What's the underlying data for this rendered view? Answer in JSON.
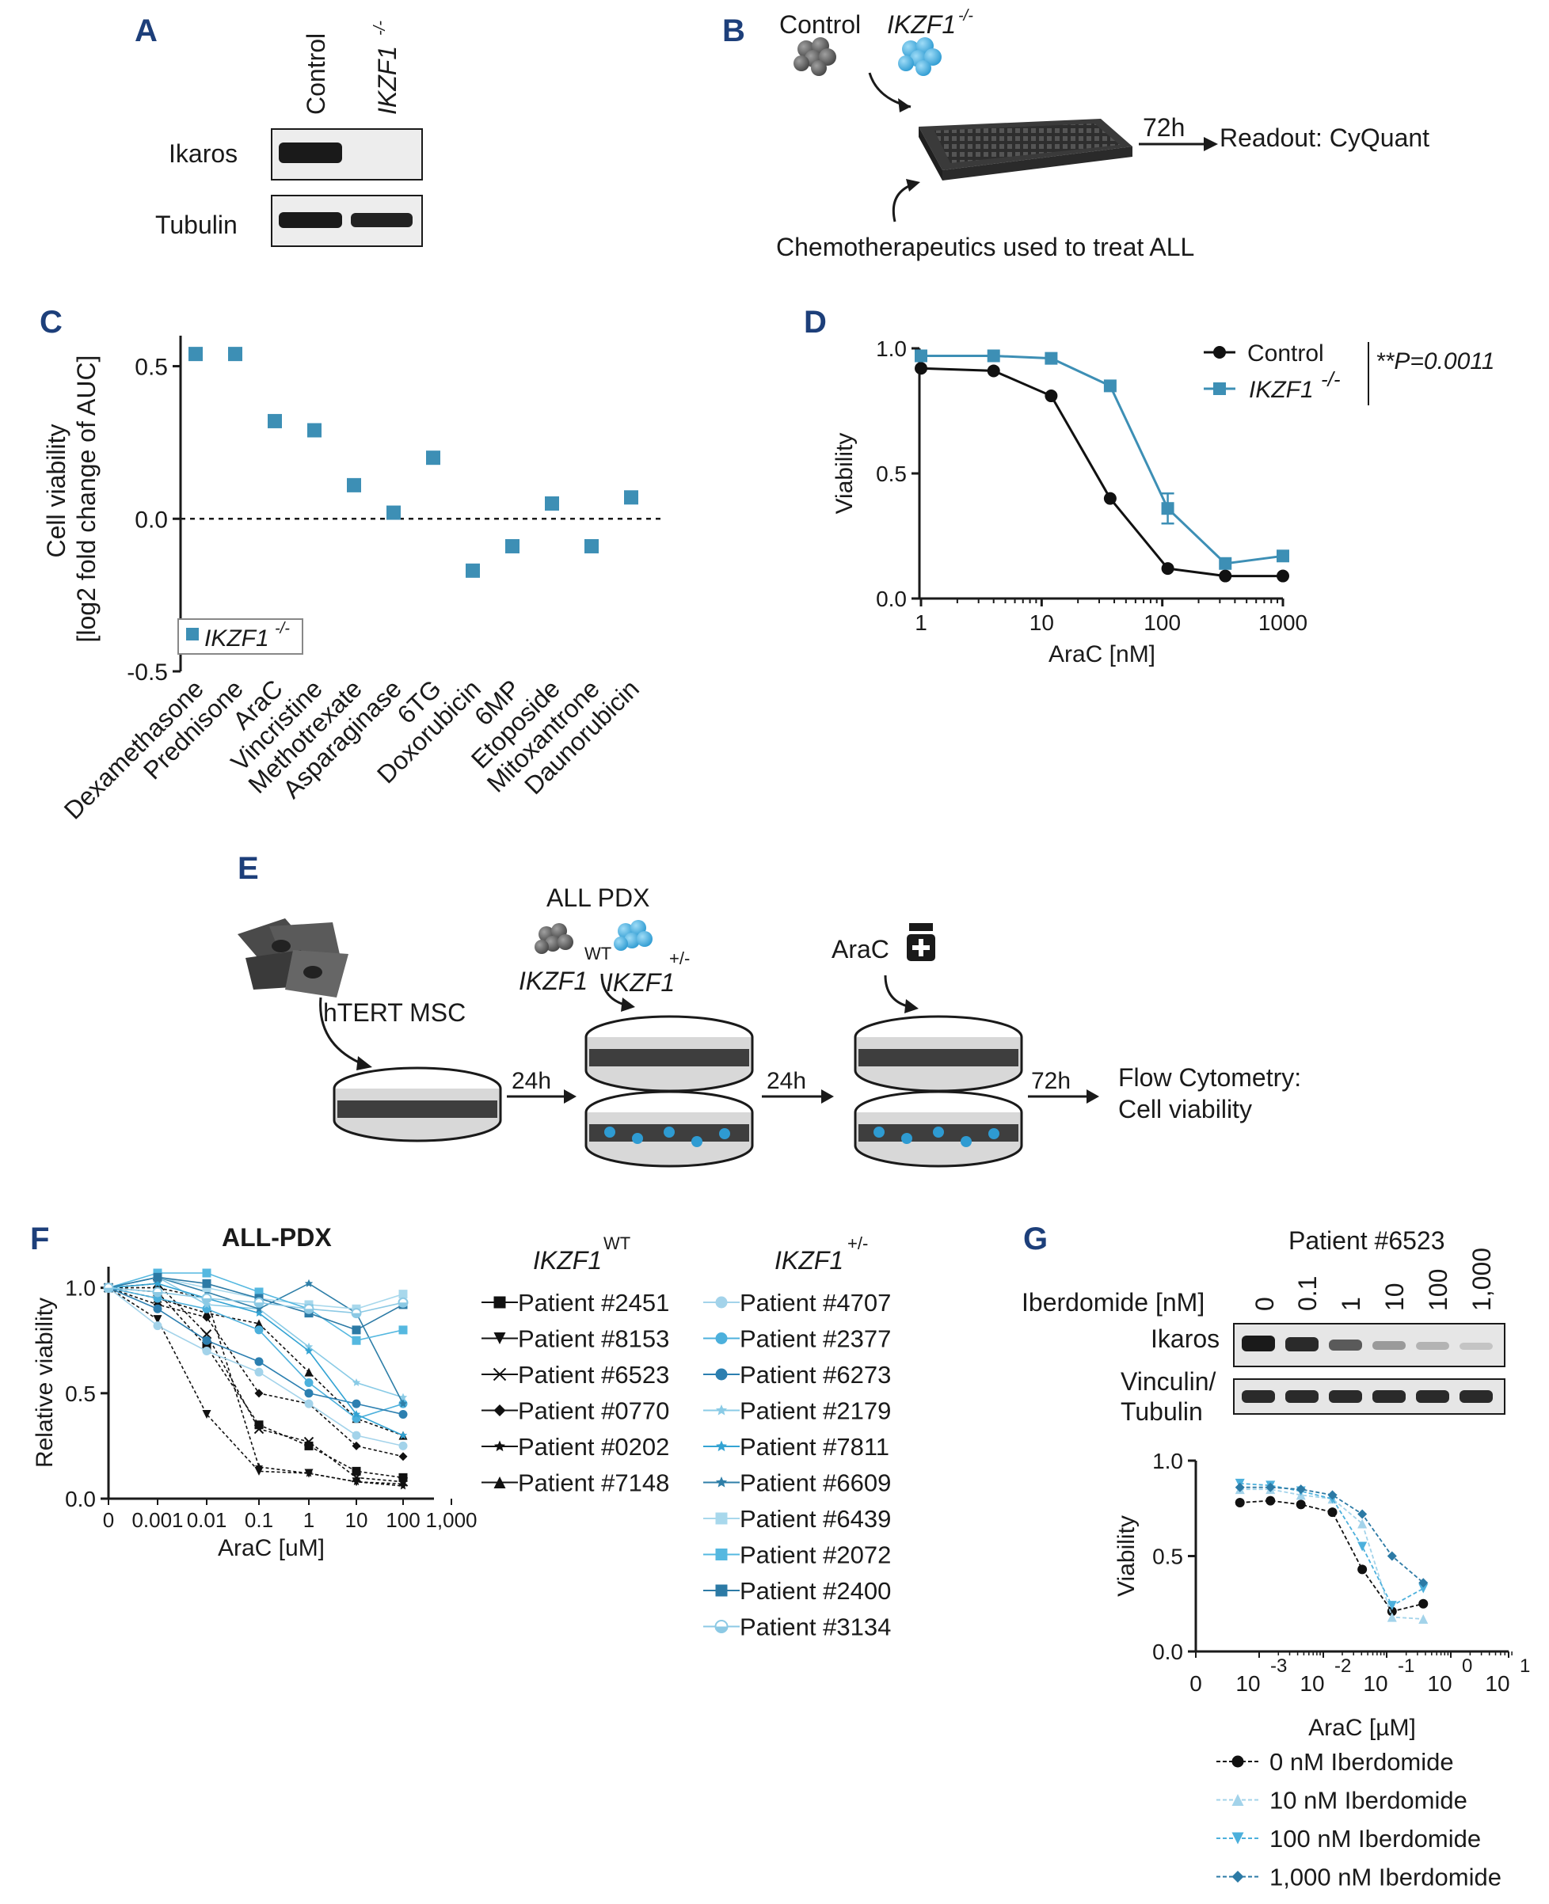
{
  "panels": {
    "A": {
      "label": "A",
      "lanes": [
        "Control",
        "IKZF1"
      ],
      "lane_sup": "-/-",
      "blots": [
        "Ikaros",
        "Tubulin"
      ]
    },
    "B": {
      "label": "B",
      "control": "Control",
      "ko": "IKZF1",
      "ko_sup": "-/-",
      "time": "72h",
      "readout": "Readout: CyQuant",
      "treat": "Chemotherapeutics used to treat ALL"
    },
    "E": {
      "label": "E",
      "msc": "hTERT MSC",
      "pdx": "ALL PDX",
      "wt_gene": "IKZF1",
      "wt_sup": "WT",
      "het_gene": "IKZF1",
      "het_sup": "+/-",
      "drug": "AraC",
      "t1": "24h",
      "t2": "24h",
      "t3": "72h",
      "out1": "Flow Cytometry:",
      "out2": "Cell viability"
    },
    "G": {
      "patient": "Patient #6523",
      "dose_label": "Iberdomide [nM]",
      "doses": [
        "0",
        "0.1",
        "1",
        "10",
        "100",
        "1,000"
      ],
      "blots": [
        "Ikaros",
        "Vinculin/",
        "Tubulin"
      ]
    }
  },
  "chart_data": [
    {
      "id": "C",
      "label": "C",
      "type": "scatter",
      "ylabel_line1": "Cell viability",
      "ylabel_line2": "[log2 fold change of AUC]",
      "ylim": [
        -0.5,
        0.6
      ],
      "yticks": [
        "0.5",
        "0.0",
        "-0.5"
      ],
      "categories": [
        "Dexamethasone",
        "Prednisone",
        "AraC",
        "Vincristine",
        "Methotrexate",
        "Asparaginase",
        "6TG",
        "Doxorubicin",
        "6MP",
        "Etoposide",
        "Mitoxantrone",
        "Daunorubicin"
      ],
      "values": [
        0.54,
        0.54,
        0.32,
        0.29,
        0.11,
        0.02,
        0.2,
        -0.17,
        -0.09,
        0.05,
        -0.09,
        0.07
      ],
      "legend": "IKZF1",
      "legend_sup": "-/-",
      "color": "#3d8fb5"
    },
    {
      "id": "D",
      "label": "D",
      "type": "line",
      "xlabel": "AraC [nM]",
      "ylabel": "Viability",
      "xscale": "log",
      "xlim": [
        1,
        1000
      ],
      "ylim": [
        0,
        1
      ],
      "xticks": [
        "1",
        "10",
        "100",
        "1000"
      ],
      "yticks": [
        "1.0",
        "0.5",
        "0.0"
      ],
      "x": [
        1,
        4,
        12,
        37,
        111,
        333,
        1000
      ],
      "series": [
        {
          "name": "Control",
          "color": "#111111",
          "marker": "circle",
          "values": [
            0.92,
            0.91,
            0.81,
            0.4,
            0.12,
            0.09,
            0.09
          ]
        },
        {
          "name": "IKZF1",
          "sup": "-/-",
          "color": "#3d8fb5",
          "marker": "square",
          "values": [
            0.97,
            0.97,
            0.96,
            0.85,
            0.36,
            0.14,
            0.17
          ]
        }
      ],
      "annotation": "**P=0.0011"
    },
    {
      "id": "F",
      "label": "F",
      "type": "line",
      "title": "ALL-PDX",
      "xlabel": "AraC [uM]",
      "ylabel": "Relative viability",
      "ylim": [
        0,
        1.1
      ],
      "xticks": [
        "0",
        "0.001",
        "0.01",
        "0.1",
        "1",
        "10",
        "100",
        "1,000"
      ],
      "yticks": [
        "1.0",
        "0.5",
        "0.0"
      ],
      "x": [
        0,
        0.001,
        0.01,
        0.1,
        1,
        10,
        100
      ],
      "wt_title": "IKZF1",
      "wt_sup": "WT",
      "het_title": "IKZF1",
      "het_sup": "+/-",
      "series": [
        {
          "name": "Patient #2451",
          "group": "WT",
          "color": "#111111",
          "marker": "square",
          "values": [
            1.0,
            0.98,
            0.72,
            0.35,
            0.25,
            0.13,
            0.1
          ]
        },
        {
          "name": "Patient #8153",
          "group": "WT",
          "color": "#111111",
          "marker": "tri-down",
          "values": [
            1.0,
            0.85,
            0.4,
            0.13,
            0.12,
            0.08,
            0.07
          ]
        },
        {
          "name": "Patient #6523",
          "group": "WT",
          "color": "#111111",
          "marker": "x",
          "values": [
            1.0,
            1.02,
            0.78,
            0.33,
            0.27,
            0.1,
            0.08
          ]
        },
        {
          "name": "Patient #0770",
          "group": "WT",
          "color": "#111111",
          "marker": "diamond",
          "values": [
            1.0,
            0.92,
            0.86,
            0.5,
            0.45,
            0.25,
            0.2
          ]
        },
        {
          "name": "Patient #0202",
          "group": "WT",
          "color": "#111111",
          "marker": "star",
          "values": [
            1.0,
            1.0,
            0.95,
            0.15,
            0.12,
            0.08,
            0.06
          ]
        },
        {
          "name": "Patient #7148",
          "group": "WT",
          "color": "#111111",
          "marker": "tri-up",
          "values": [
            1.0,
            0.95,
            0.88,
            0.83,
            0.6,
            0.38,
            0.3
          ]
        },
        {
          "name": "Patient #4707",
          "group": "+/-",
          "color": "#a3d3ea",
          "marker": "circle",
          "values": [
            1.0,
            0.82,
            0.7,
            0.6,
            0.45,
            0.3,
            0.25
          ]
        },
        {
          "name": "Patient #2377",
          "group": "+/-",
          "color": "#4cb0dc",
          "marker": "circle",
          "values": [
            1.0,
            0.95,
            0.9,
            0.8,
            0.55,
            0.38,
            0.45
          ]
        },
        {
          "name": "Patient #6273",
          "group": "+/-",
          "color": "#2c7fb0",
          "marker": "circle",
          "values": [
            1.0,
            0.9,
            0.75,
            0.65,
            0.5,
            0.45,
            0.4
          ]
        },
        {
          "name": "Patient #2179",
          "group": "+/-",
          "color": "#8acbe6",
          "marker": "star",
          "values": [
            1.0,
            1.05,
            0.92,
            0.9,
            0.72,
            0.55,
            0.48
          ]
        },
        {
          "name": "Patient #7811",
          "group": "+/-",
          "color": "#33a3d3",
          "marker": "star",
          "values": [
            1.0,
            1.02,
            0.95,
            0.88,
            0.7,
            0.4,
            0.3
          ]
        },
        {
          "name": "Patient #6609",
          "group": "+/-",
          "color": "#2f7fa8",
          "marker": "star",
          "values": [
            1.0,
            1.05,
            0.98,
            0.9,
            1.02,
            0.88,
            0.45
          ]
        },
        {
          "name": "Patient #6439",
          "group": "+/-",
          "color": "#a8d8ec",
          "marker": "square",
          "values": [
            1.0,
            1.05,
            1.0,
            0.95,
            0.92,
            0.9,
            0.97
          ]
        },
        {
          "name": "Patient #2072",
          "group": "+/-",
          "color": "#55b8e0",
          "marker": "square",
          "values": [
            1.0,
            1.07,
            1.07,
            0.98,
            0.9,
            0.75,
            0.8
          ]
        },
        {
          "name": "Patient #2400",
          "group": "+/-",
          "color": "#2c7aa5",
          "marker": "square",
          "values": [
            1.0,
            1.05,
            1.02,
            0.95,
            0.88,
            0.8,
            0.92
          ]
        },
        {
          "name": "Patient #3134",
          "group": "+/-",
          "color": "#8cc9e4",
          "marker": "half-circle",
          "values": [
            1.0,
            0.98,
            0.95,
            0.93,
            0.9,
            0.88,
            0.93
          ]
        }
      ]
    },
    {
      "id": "G",
      "label": "G",
      "type": "line",
      "xlabel": "AraC [µM]",
      "ylabel": "Viability",
      "ylim": [
        0,
        1
      ],
      "yticks": [
        "1.0",
        "0.5",
        "0.0"
      ],
      "xticks": [
        {
          "base": "0",
          "exp": ""
        },
        {
          "base": "10",
          "exp": "-3"
        },
        {
          "base": "10",
          "exp": "-2"
        },
        {
          "base": "10",
          "exp": "-1"
        },
        {
          "base": "10",
          "exp": "0"
        },
        {
          "base": "10",
          "exp": "1"
        }
      ],
      "x": [
        0.0005,
        0.0015,
        0.0045,
        0.014,
        0.041,
        0.12,
        0.37,
        1.1
      ],
      "series": [
        {
          "name": "0 nM Iberdomide",
          "color": "#111111",
          "marker": "circle",
          "values": [
            0.78,
            0.79,
            0.77,
            0.73,
            0.43,
            0.21,
            0.25,
            null
          ]
        },
        {
          "name": "10 nM Iberdomide",
          "color": "#a3d3ea",
          "marker": "tri-up",
          "values": [
            0.85,
            0.85,
            0.82,
            0.8,
            0.67,
            0.18,
            0.17,
            null
          ]
        },
        {
          "name": "100 nM Iberdomide",
          "color": "#4cb0dc",
          "marker": "tri-down",
          "values": [
            0.88,
            0.87,
            0.84,
            0.8,
            0.55,
            0.24,
            0.33,
            null
          ]
        },
        {
          "name": "1,000 nM Iberdomide",
          "color": "#2c7aa5",
          "marker": "diamond",
          "values": [
            0.86,
            0.86,
            0.85,
            0.82,
            0.72,
            0.5,
            0.36,
            null
          ]
        }
      ]
    }
  ]
}
